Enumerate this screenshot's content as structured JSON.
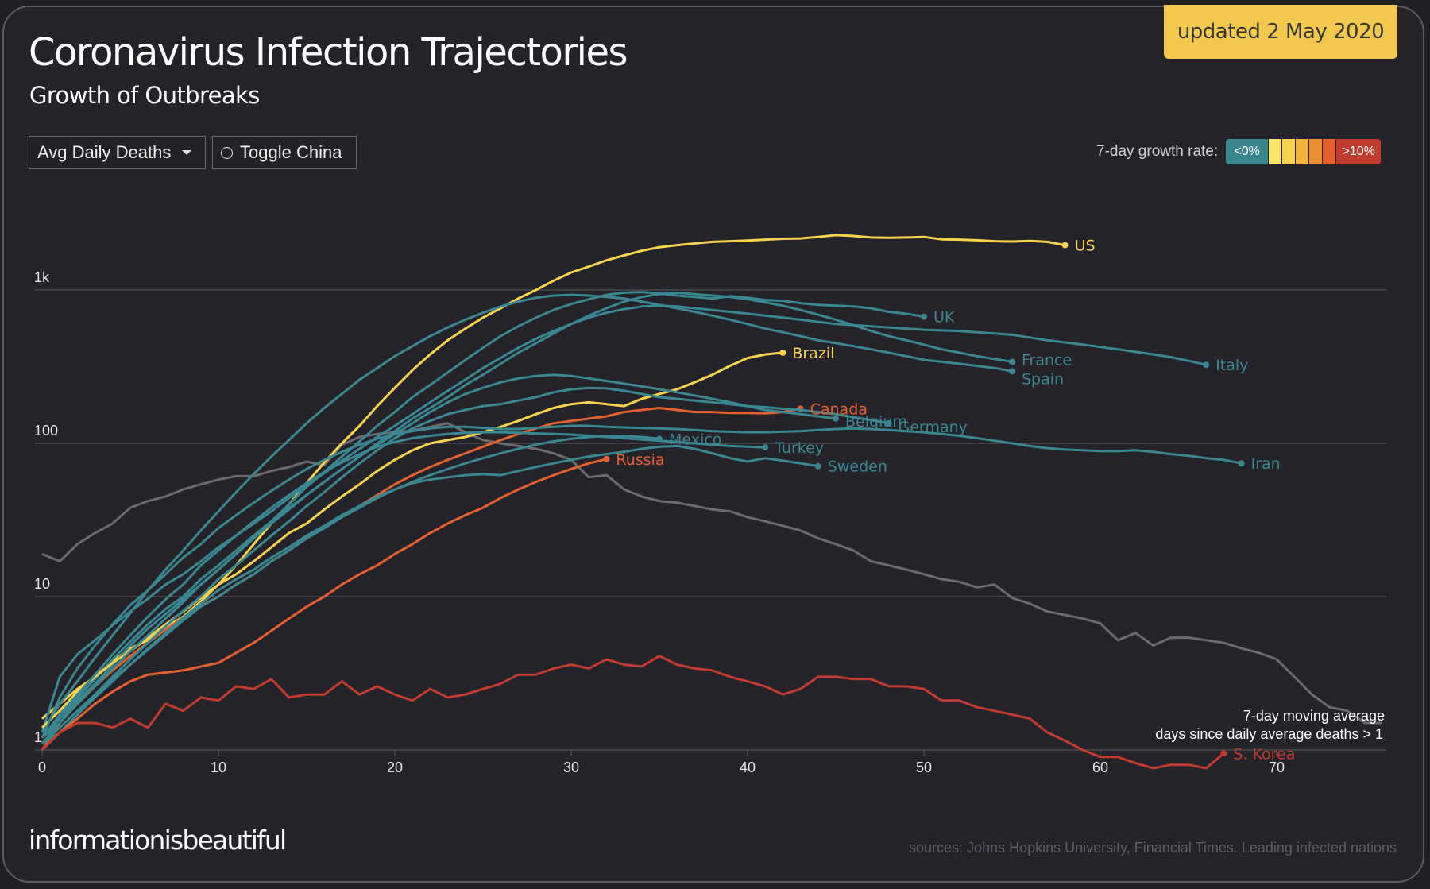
{
  "header": {
    "title": "Coronavirus Infection Trajectories",
    "subtitle": "Growth of Outbreaks",
    "updated_badge": "updated 2 May 2020"
  },
  "controls": {
    "metric_select": "Avg Daily Deaths",
    "toggle_china": "Toggle China"
  },
  "legend": {
    "label": "7-day growth rate:",
    "swatches": [
      {
        "label": "<0%",
        "color": "#3a8790"
      },
      {
        "label": "",
        "color": "#fbe56b"
      },
      {
        "label": "",
        "color": "#f7d24c"
      },
      {
        "label": "",
        "color": "#f2b33d"
      },
      {
        "label": "",
        "color": "#ec8f32"
      },
      {
        "label": "",
        "color": "#e4602f"
      },
      {
        "label": ">10%",
        "color": "#c13b2f"
      }
    ]
  },
  "footer": {
    "brand": "informationisbeautiful",
    "sources": "sources: Johns Hopkins University, Financial Times. Leading infected nations"
  },
  "chart_data": {
    "type": "line",
    "title": "Coronavirus Infection Trajectories",
    "subtitle": "Growth of Outbreaks",
    "xlabel": "days since daily average deaths > 1",
    "ylabel": "7-day moving average",
    "y_scale": "log",
    "xlim": [
      0,
      76
    ],
    "ylim": [
      1,
      3000
    ],
    "x_ticks": [
      0,
      10,
      20,
      30,
      40,
      50,
      60,
      70
    ],
    "y_ticks": [
      {
        "value": 1,
        "label": "1"
      },
      {
        "value": 10,
        "label": "10"
      },
      {
        "value": 100,
        "label": "100"
      },
      {
        "value": 1000,
        "label": "1k"
      }
    ],
    "grid": "horizontal",
    "colors": {
      "declining": "#3a8790",
      "growing_low": "#f7d24c",
      "growing_mid": "#e4602f",
      "growing_high": "#c13b2f",
      "china": "#6b6a6e"
    },
    "series": [
      {
        "name": "US",
        "color": "#f7d24c",
        "label": true,
        "values": [
          1.6,
          2.0,
          2.5,
          3.0,
          3.8,
          4.6,
          5.2,
          6.3,
          7.4,
          9.3,
          12,
          16,
          22,
          30,
          40,
          55,
          75,
          100,
          130,
          175,
          230,
          300,
          380,
          470,
          560,
          660,
          760,
          880,
          1000,
          1150,
          1300,
          1420,
          1560,
          1680,
          1800,
          1900,
          1960,
          2010,
          2060,
          2080,
          2100,
          2130,
          2160,
          2170,
          2220,
          2280,
          2250,
          2200,
          2190,
          2200,
          2220,
          2140,
          2130,
          2110,
          2080,
          2070,
          2090,
          2060,
          1960
        ]
      },
      {
        "name": "UK",
        "color": "#3a8790",
        "label": true,
        "values": [
          1.2,
          1.5,
          2.1,
          2.7,
          3.6,
          4.8,
          6.2,
          7.7,
          9.6,
          12,
          15,
          19,
          24,
          31,
          40,
          52,
          65,
          82,
          103,
          130,
          160,
          200,
          240,
          290,
          350,
          420,
          500,
          580,
          660,
          740,
          810,
          870,
          930,
          960,
          970,
          950,
          920,
          900,
          880,
          910,
          890,
          860,
          850,
          820,
          800,
          790,
          780,
          760,
          720,
          700,
          670
        ]
      },
      {
        "name": "France",
        "color": "#3a8790",
        "label": true,
        "values": [
          1.2,
          1.6,
          2.2,
          2.9,
          3.9,
          5.1,
          6.6,
          8.3,
          10,
          13,
          16,
          20,
          25,
          31,
          38,
          46,
          56,
          68,
          82,
          100,
          120,
          145,
          170,
          200,
          240,
          280,
          330,
          390,
          450,
          520,
          600,
          680,
          760,
          840,
          900,
          940,
          960,
          940,
          920,
          900,
          870,
          830,
          790,
          740,
          690,
          640,
          590,
          540,
          500,
          470,
          440,
          410,
          390,
          370,
          355,
          340
        ]
      },
      {
        "name": "Spain",
        "color": "#3a8790",
        "label": true,
        "values": [
          1.3,
          2.0,
          2.8,
          4.0,
          5.6,
          7.8,
          11,
          15,
          20,
          27,
          36,
          48,
          63,
          82,
          105,
          135,
          170,
          210,
          260,
          310,
          370,
          430,
          500,
          570,
          640,
          710,
          780,
          840,
          890,
          920,
          930,
          920,
          900,
          880,
          840,
          800,
          760,
          720,
          680,
          640,
          600,
          560,
          530,
          500,
          470,
          450,
          430,
          410,
          390,
          370,
          350,
          340,
          330,
          320,
          310,
          295
        ]
      },
      {
        "name": "Italy",
        "color": "#3a8790",
        "label": true,
        "values": [
          1.3,
          3.0,
          4.2,
          5.2,
          6.5,
          8.0,
          9.7,
          12,
          14,
          17,
          21,
          25,
          30,
          36,
          44,
          53,
          64,
          77,
          92,
          110,
          130,
          155,
          185,
          220,
          260,
          310,
          360,
          420,
          480,
          540,
          600,
          660,
          710,
          750,
          780,
          790,
          780,
          760,
          740,
          720,
          700,
          680,
          660,
          640,
          620,
          600,
          590,
          580,
          570,
          560,
          550,
          545,
          540,
          530,
          520,
          510,
          490,
          470,
          455,
          440,
          425,
          410,
          395,
          380,
          365,
          345,
          325
        ]
      },
      {
        "name": "Brazil",
        "color": "#f7d24c",
        "label": true,
        "values": [
          1.4,
          1.8,
          2.4,
          3.0,
          3.7,
          4.4,
          5.4,
          6.6,
          8.0,
          9.8,
          12,
          14,
          17,
          21,
          26,
          30,
          37,
          45,
          54,
          66,
          78,
          90,
          100,
          105,
          110,
          118,
          128,
          140,
          155,
          170,
          180,
          185,
          180,
          175,
          195,
          210,
          225,
          250,
          280,
          320,
          360,
          380,
          390
        ]
      },
      {
        "name": "Canada",
        "color": "#e4602f",
        "label": true,
        "values": [
          1.0,
          1.5,
          2.0,
          2.6,
          3.3,
          4.1,
          5.0,
          6.1,
          7.3,
          8.7,
          10,
          12,
          14,
          17,
          20,
          24,
          28,
          33,
          39,
          46,
          54,
          62,
          70,
          78,
          86,
          95,
          105,
          115,
          125,
          135,
          140,
          145,
          150,
          160,
          165,
          170,
          165,
          160,
          160,
          158,
          158,
          157,
          160,
          168
        ]
      },
      {
        "name": "Belgium",
        "color": "#3a8790",
        "label": true,
        "values": [
          1.1,
          1.5,
          2.0,
          2.6,
          3.4,
          4.4,
          5.6,
          7.2,
          9.2,
          12,
          15,
          19,
          24,
          30,
          37,
          46,
          56,
          68,
          82,
          98,
          115,
          135,
          160,
          185,
          210,
          230,
          250,
          265,
          275,
          280,
          275,
          265,
          255,
          245,
          235,
          225,
          215,
          205,
          195,
          185,
          175,
          165,
          160,
          155,
          150,
          145
        ]
      },
      {
        "name": "Germany",
        "color": "#3a8790",
        "label": true,
        "values": [
          1.1,
          1.3,
          1.7,
          2.3,
          3.0,
          3.9,
          5.0,
          6.4,
          8.1,
          10,
          13,
          16,
          20,
          25,
          31,
          39,
          48,
          60,
          74,
          90,
          108,
          125,
          140,
          155,
          165,
          175,
          180,
          190,
          200,
          215,
          225,
          230,
          228,
          220,
          210,
          200,
          195,
          190,
          185,
          180,
          175,
          172,
          168,
          165,
          160,
          155,
          148,
          142,
          135
        ]
      },
      {
        "name": "Mexico",
        "color": "#3a8790",
        "label": true,
        "values": [
          1.1,
          1.4,
          1.8,
          2.3,
          2.9,
          3.6,
          4.5,
          5.6,
          7.0,
          8.6,
          10,
          12,
          14,
          17,
          20,
          24,
          28,
          33,
          38,
          44,
          50,
          56,
          62,
          68,
          74,
          80,
          86,
          92,
          98,
          103,
          107,
          110,
          112,
          112,
          110,
          107
        ]
      },
      {
        "name": "Turkey",
        "color": "#3a8790",
        "label": true,
        "values": [
          1.2,
          1.7,
          2.3,
          3.1,
          4.2,
          5.6,
          7.4,
          9.6,
          12,
          16,
          20,
          25,
          31,
          38,
          46,
          55,
          65,
          75,
          85,
          95,
          102,
          108,
          112,
          115,
          117,
          118,
          118,
          117,
          116,
          115,
          114,
          112,
          110,
          108,
          106,
          104,
          102,
          100,
          98,
          96,
          95,
          94
        ]
      },
      {
        "name": "Sweden",
        "color": "#3a8790",
        "label": true,
        "values": [
          1.0,
          1.3,
          1.7,
          2.2,
          2.8,
          3.6,
          4.6,
          5.8,
          7.3,
          9.0,
          11,
          13,
          15,
          18,
          21,
          25,
          29,
          34,
          39,
          45,
          50,
          55,
          58,
          60,
          62,
          63,
          62,
          66,
          70,
          74,
          78,
          82,
          85,
          88,
          92,
          95,
          96,
          92,
          86,
          80,
          76,
          80,
          77,
          74,
          71
        ]
      },
      {
        "name": "Russia",
        "color": "#e4602f",
        "label": true,
        "values": [
          1.0,
          1.3,
          1.6,
          2.0,
          2.4,
          2.8,
          3.1,
          3.2,
          3.3,
          3.5,
          3.7,
          4.3,
          5.0,
          6.0,
          7.2,
          8.6,
          10,
          12,
          14,
          16,
          19,
          22,
          26,
          30,
          34,
          38,
          44,
          50,
          56,
          62,
          68,
          74,
          79
        ]
      },
      {
        "name": "Iran",
        "color": "#3a8790",
        "label": true,
        "values": [
          1.2,
          2.2,
          3.4,
          4.8,
          6.6,
          8.8,
          11,
          14,
          18,
          22,
          28,
          34,
          41,
          49,
          58,
          68,
          78,
          88,
          98,
          107,
          115,
          120,
          125,
          128,
          128,
          126,
          124,
          124,
          126,
          128,
          130,
          130,
          128,
          127,
          126,
          125,
          124,
          122,
          120,
          119,
          118,
          118,
          119,
          120,
          122,
          124,
          125,
          124,
          122,
          120,
          118,
          115,
          112,
          108,
          104,
          100,
          96,
          93,
          91,
          90,
          89,
          89,
          90,
          88,
          85,
          83,
          80,
          78,
          74
        ]
      },
      {
        "name": "S. Korea",
        "color": "#c13b2f",
        "label": true,
        "values": [
          1.0,
          1.3,
          1.5,
          1.5,
          1.4,
          1.6,
          1.4,
          2.0,
          1.8,
          2.2,
          2.1,
          2.6,
          2.5,
          2.9,
          2.2,
          2.3,
          2.3,
          2.8,
          2.3,
          2.6,
          2.3,
          2.1,
          2.5,
          2.2,
          2.3,
          2.5,
          2.7,
          3.1,
          3.1,
          3.4,
          3.6,
          3.4,
          3.9,
          3.6,
          3.5,
          4.1,
          3.6,
          3.4,
          3.3,
          3.0,
          2.8,
          2.6,
          2.3,
          2.5,
          3.0,
          3.0,
          2.9,
          2.9,
          2.6,
          2.6,
          2.5,
          2.1,
          2.1,
          1.9,
          1.8,
          1.7,
          1.6,
          1.3,
          1.15,
          1.0,
          0.9,
          0.9,
          0.82,
          0.76,
          0.8,
          0.8,
          0.76,
          0.95
        ]
      },
      {
        "name": "China",
        "color": "#6b6a6e",
        "label": false,
        "values": [
          19,
          17,
          22,
          26,
          30,
          38,
          42,
          45,
          50,
          54,
          58,
          61,
          61,
          66,
          70,
          76,
          72,
          98,
          110,
          115,
          118,
          121,
          128,
          135,
          118,
          105,
          100,
          96,
          92,
          86,
          78,
          60,
          62,
          50,
          45,
          42,
          41,
          39,
          37,
          36,
          33,
          31,
          29,
          27,
          24,
          22,
          20,
          17,
          16,
          15,
          14,
          13,
          12.5,
          11.5,
          12,
          9.8,
          9.0,
          8.0,
          7.6,
          7.2,
          6.7,
          5.2,
          5.8,
          4.8,
          5.4,
          5.4,
          5.2,
          5.0,
          4.6,
          4.3,
          3.9,
          3.0,
          2.3,
          1.9,
          1.8,
          1.5,
          1.5
        ]
      }
    ]
  }
}
